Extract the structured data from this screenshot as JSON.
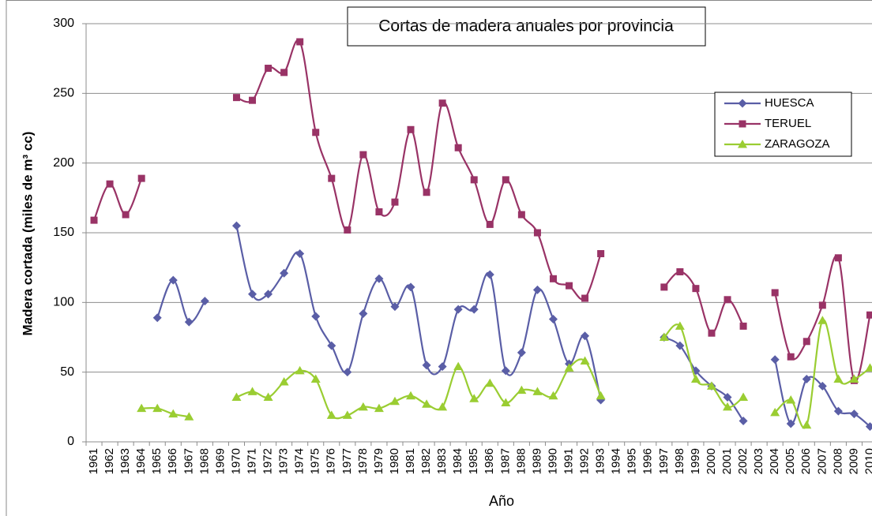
{
  "chart_data": {
    "type": "line",
    "title": "Cortas de madera anuales por provincia",
    "x_label": "Año",
    "y_label": "Madera cortada (miles de m³ cc)",
    "categories": [
      "1961",
      "1962",
      "1963",
      "1964",
      "1965",
      "1966",
      "1967",
      "1968",
      "1969",
      "1970",
      "1971",
      "1972",
      "1973",
      "1974",
      "1975",
      "1976",
      "1977",
      "1978",
      "1979",
      "1980",
      "1981",
      "1982",
      "1983",
      "1984",
      "1985",
      "1986",
      "1987",
      "1988",
      "1989",
      "1990",
      "1991",
      "1992",
      "1993",
      "1994",
      "1995",
      "1996",
      "1997",
      "1998",
      "1999",
      "2000",
      "2001",
      "2002",
      "2003",
      "2004",
      "2005",
      "2006",
      "2007",
      "2008",
      "2009",
      "2010"
    ],
    "series": [
      {
        "name": "HUESCA",
        "color": "#5a5ea6",
        "marker": "diamond",
        "values": [
          null,
          null,
          null,
          null,
          89,
          116,
          86,
          101,
          null,
          155,
          106,
          106,
          121,
          135,
          90,
          69,
          50,
          92,
          117,
          97,
          111,
          55,
          54,
          95,
          95,
          120,
          51,
          64,
          109,
          88,
          56,
          76,
          30,
          null,
          null,
          null,
          75,
          69,
          51,
          40,
          32,
          15,
          null,
          59,
          13,
          45,
          40,
          22,
          20,
          11
        ]
      },
      {
        "name": "TERUEL",
        "color": "#993366",
        "marker": "square",
        "values": [
          159,
          185,
          163,
          189,
          null,
          null,
          null,
          null,
          null,
          247,
          245,
          268,
          265,
          287,
          222,
          189,
          152,
          206,
          165,
          172,
          224,
          179,
          243,
          211,
          188,
          156,
          188,
          163,
          150,
          117,
          112,
          103,
          135,
          null,
          null,
          null,
          111,
          122,
          110,
          78,
          102,
          83,
          null,
          107,
          61,
          72,
          98,
          132,
          44,
          91
        ]
      },
      {
        "name": "ZARAGOZA",
        "color": "#9acd32",
        "marker": "triangle",
        "values": [
          null,
          null,
          null,
          24,
          24,
          20,
          18,
          null,
          null,
          32,
          36,
          32,
          43,
          51,
          45,
          19,
          19,
          25,
          24,
          29,
          33,
          27,
          25,
          54,
          31,
          42,
          28,
          37,
          36,
          33,
          53,
          58,
          33,
          null,
          null,
          null,
          75,
          83,
          45,
          40,
          25,
          32,
          null,
          21,
          30,
          12,
          87,
          45,
          45,
          53
        ]
      }
    ],
    "ylim": [
      0,
      300
    ],
    "yticks": [
      0,
      50,
      100,
      150,
      200,
      250,
      300
    ],
    "grid": true,
    "smooth": true,
    "legend": "upper right"
  }
}
